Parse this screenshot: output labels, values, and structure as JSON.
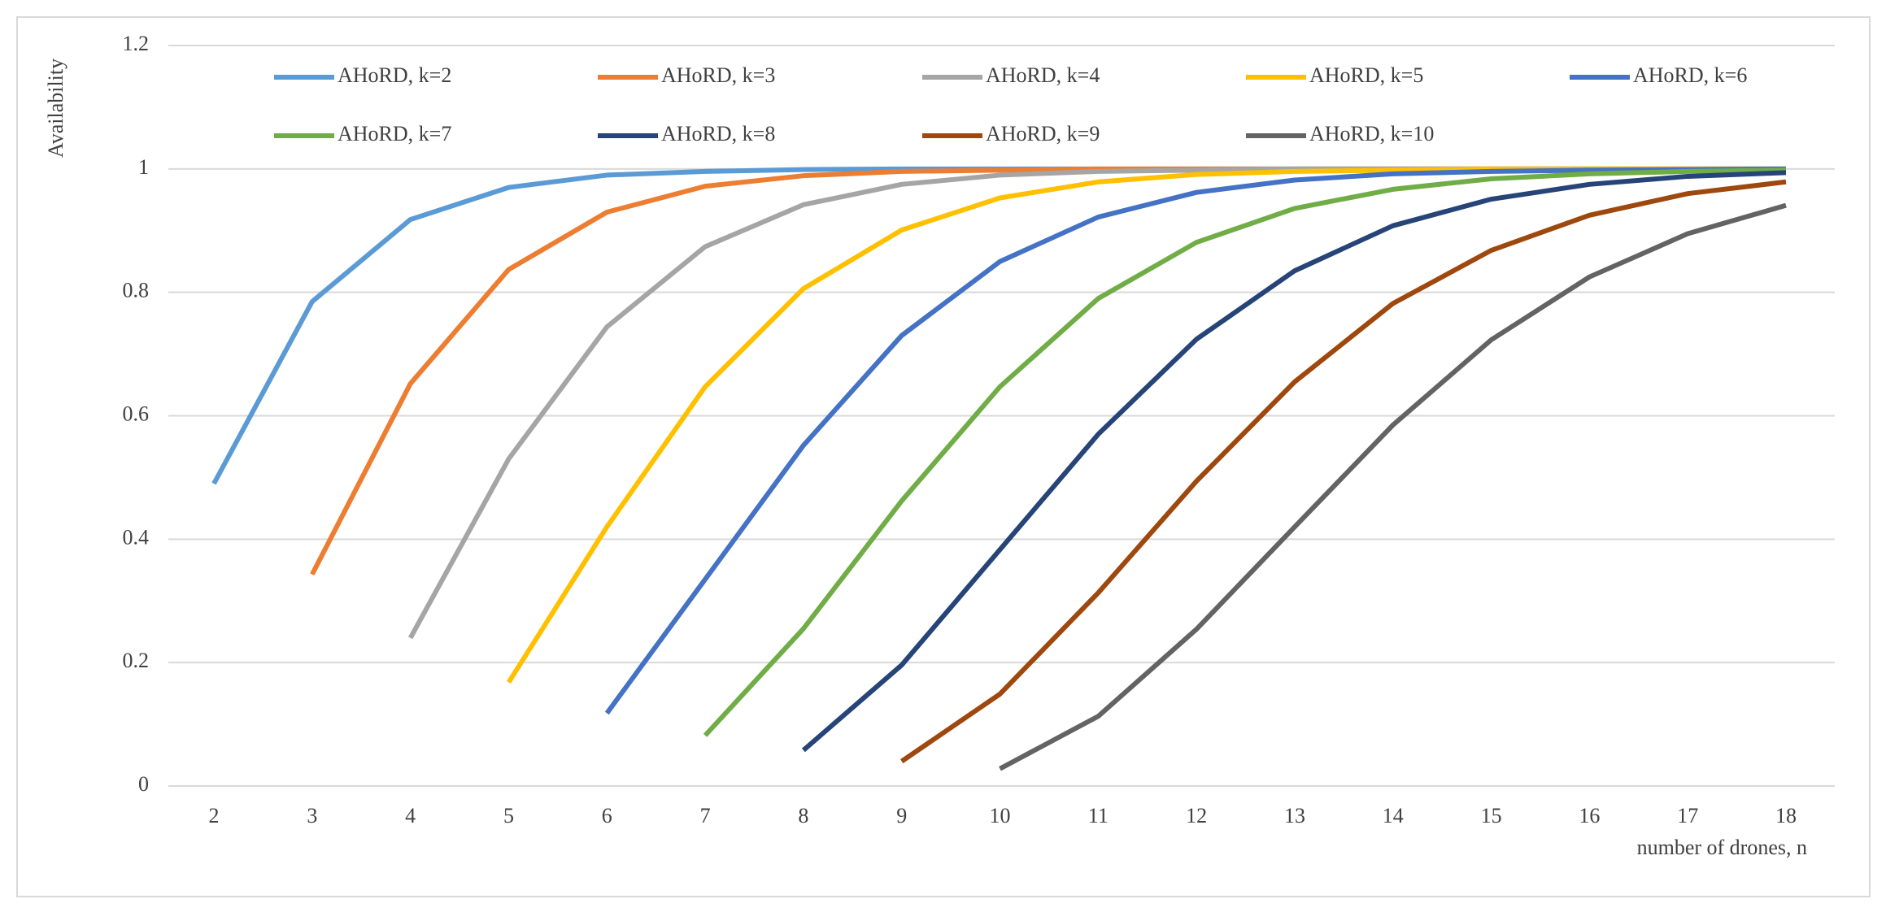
{
  "chart_data": {
    "type": "line",
    "y_label": "Availability",
    "x_label": "number of drones, n",
    "categories": [
      "2",
      "3",
      "4",
      "5",
      "6",
      "7",
      "8",
      "9",
      "10",
      "11",
      "12",
      "13",
      "14",
      "15",
      "16",
      "17",
      "18"
    ],
    "ylim": [
      0,
      1.2
    ],
    "yticks": [
      0,
      0.2,
      0.4,
      0.6,
      0.8,
      1,
      1.2
    ],
    "grid": true,
    "legend": "top",
    "series": [
      {
        "name": "AHoRD, k=2",
        "color": "#5b9bd5",
        "values": [
          0.49,
          0.785,
          0.918,
          0.97,
          0.99,
          0.996,
          0.999,
          1,
          1,
          1,
          1,
          1,
          1,
          1,
          1,
          1,
          1
        ]
      },
      {
        "name": "AHoRD, k=3",
        "color": "#ed7d31",
        "values": [
          null,
          0.343,
          0.652,
          0.837,
          0.93,
          0.972,
          0.989,
          0.996,
          0.998,
          1,
          1,
          1,
          1,
          1,
          1,
          1,
          1
        ]
      },
      {
        "name": "AHoRD, k=4",
        "color": "#a5a5a5",
        "values": [
          null,
          null,
          0.24,
          0.53,
          0.744,
          0.874,
          0.942,
          0.975,
          0.99,
          0.996,
          0.998,
          1,
          1,
          1,
          1,
          1,
          1
        ]
      },
      {
        "name": "AHoRD, k=5",
        "color": "#ffc000",
        "values": [
          null,
          null,
          null,
          0.168,
          0.42,
          0.647,
          0.806,
          0.901,
          0.953,
          0.979,
          0.991,
          0.996,
          0.998,
          1,
          1,
          1,
          1
        ]
      },
      {
        "name": "AHoRD, k=6",
        "color": "#4472c4",
        "values": [
          null,
          null,
          null,
          null,
          0.118,
          0.335,
          0.552,
          0.73,
          0.85,
          0.922,
          0.962,
          0.982,
          0.992,
          0.996,
          0.998,
          0.999,
          1
        ]
      },
      {
        "name": "AHoRD, k=7",
        "color": "#70ad47",
        "values": [
          null,
          null,
          null,
          null,
          null,
          0.082,
          0.255,
          0.462,
          0.647,
          0.79,
          0.881,
          0.936,
          0.967,
          0.984,
          0.992,
          0.996,
          0.998
        ]
      },
      {
        "name": "AHoRD, k=8",
        "color": "#264478",
        "values": [
          null,
          null,
          null,
          null,
          null,
          null,
          0.058,
          0.196,
          0.383,
          0.57,
          0.724,
          0.835,
          0.908,
          0.951,
          0.975,
          0.988,
          0.994
        ]
      },
      {
        "name": "AHoRD, k=9",
        "color": "#9e480e",
        "values": [
          null,
          null,
          null,
          null,
          null,
          null,
          null,
          0.04,
          0.149,
          0.313,
          0.494,
          0.655,
          0.782,
          0.868,
          0.925,
          0.96,
          0.979
        ]
      },
      {
        "name": "AHoRD, k=10",
        "color": "#636363",
        "values": [
          null,
          null,
          null,
          null,
          null,
          null,
          null,
          null,
          0.028,
          0.113,
          0.254,
          0.42,
          0.585,
          0.723,
          0.825,
          0.895,
          0.941
        ]
      }
    ]
  }
}
